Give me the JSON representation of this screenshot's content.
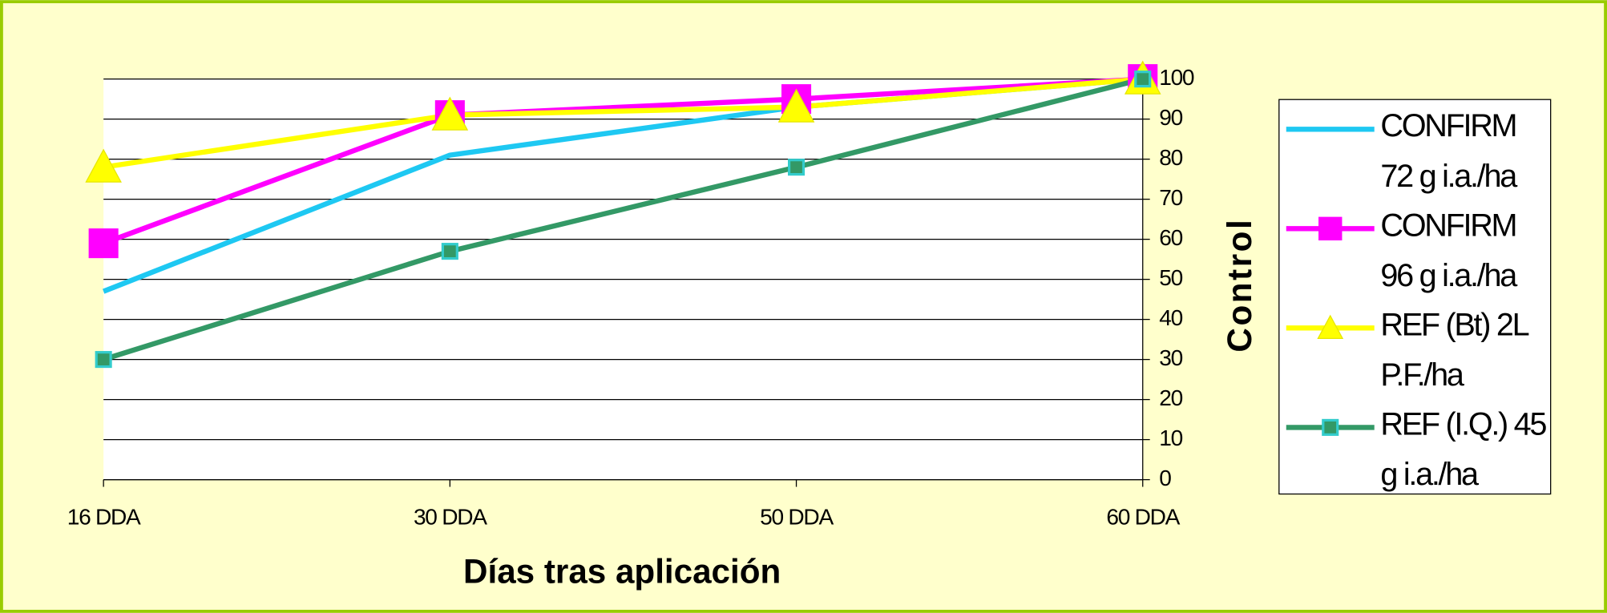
{
  "chart_data": {
    "type": "line",
    "x_label": "Días tras aplicación",
    "y_label": "Control",
    "categories": [
      "16 DDA",
      "30 DDA",
      "50 DDA",
      "60 DDA"
    ],
    "series": [
      {
        "name": "CONFIRM 72 g i.a./ha",
        "color": "#1ec8f2",
        "marker": "none",
        "values": [
          47,
          81,
          93,
          100
        ]
      },
      {
        "name": "CONFIRM 96 g i.a./ha",
        "color": "#ff00ff",
        "marker": "square",
        "values": [
          59,
          91,
          95,
          100
        ]
      },
      {
        "name": "REF (Bt) 2L P.F./ha",
        "color": "#ffff00",
        "marker": "triangle",
        "values": [
          78,
          91,
          93,
          100
        ]
      },
      {
        "name": "REF (I.Q.) 45 g i.a./ha",
        "color": "#339966",
        "marker": "square",
        "marker_edge": "#33cccc",
        "values": [
          30,
          57,
          78,
          100
        ]
      }
    ],
    "ylim": [
      0,
      100
    ],
    "yticks": [
      0,
      10,
      20,
      30,
      40,
      50,
      60,
      70,
      80,
      90,
      100
    ],
    "y_axis_side": "right",
    "grid": true,
    "legend": "right",
    "background": "#ffffcc",
    "plot_background": "#ffffff"
  }
}
